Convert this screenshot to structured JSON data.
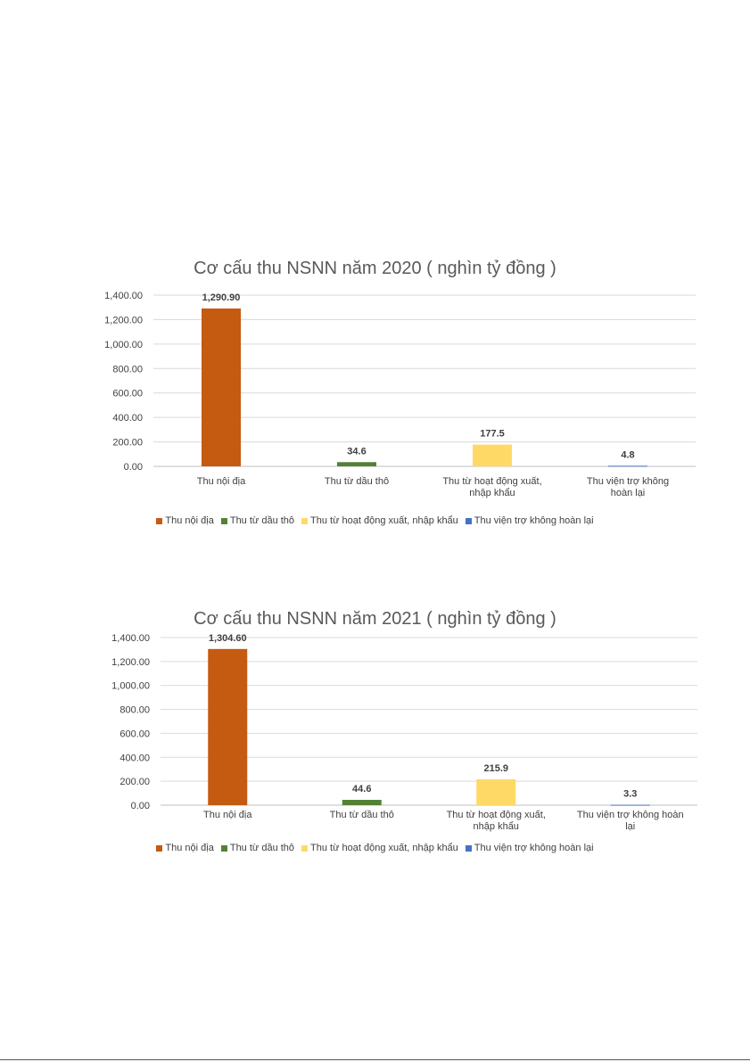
{
  "series_colors": [
    "#c55a11",
    "#548235",
    "#ffd966",
    "#4472c4"
  ],
  "chart_data": [
    {
      "type": "bar",
      "title": "Cơ cấu thu NSNN năm 2020 ( nghìn tỷ đồng )",
      "categories": [
        "Thu nội địa",
        "Thu từ dầu thô",
        "Thu từ hoạt động xuất, nhập khẩu",
        "Thu viện trợ không hoàn lại"
      ],
      "category_lines": [
        [
          "Thu nội địa"
        ],
        [
          "Thu từ dầu thô"
        ],
        [
          "Thu từ hoạt động xuất,",
          "nhập khẩu"
        ],
        [
          "Thu viện trợ không",
          "hoàn lại"
        ]
      ],
      "values": [
        1290.9,
        34.6,
        177.5,
        4.8
      ],
      "data_labels": [
        "1,290.90",
        "34.6",
        "177.5",
        "4.8"
      ],
      "yticks": [
        "0.00",
        "200.00",
        "400.00",
        "600.00",
        "800.00",
        "1,000.00",
        "1,200.00",
        "1,400.00"
      ],
      "ylim": [
        0,
        1400
      ],
      "grid": true,
      "legend": [
        "Thu nội địa",
        "Thu từ dầu thô",
        "Thu từ hoạt động xuất, nhập khẩu",
        "Thu viện trợ không hoàn lại"
      ],
      "legend_position": "bottom"
    },
    {
      "type": "bar",
      "title": "Cơ cấu thu NSNN năm 2021 ( nghìn tỷ đồng )",
      "categories": [
        "Thu nội địa",
        "Thu từ dầu thô",
        "Thu từ hoạt động xuất, nhập khẩu",
        "Thu viện trợ không hoàn lại"
      ],
      "category_lines": [
        [
          "Thu nội địa"
        ],
        [
          "Thu từ dầu thô"
        ],
        [
          "Thu từ hoạt động xuất,",
          "nhập khẩu"
        ],
        [
          "Thu viện trợ không hoàn",
          "lại"
        ]
      ],
      "values": [
        1304.6,
        44.6,
        215.9,
        3.3
      ],
      "data_labels": [
        "1,304.60",
        "44.6",
        "215.9",
        "3.3"
      ],
      "yticks": [
        "0.00",
        "200.00",
        "400.00",
        "600.00",
        "800.00",
        "1,000.00",
        "1,200.00",
        "1,400.00"
      ],
      "ylim": [
        0,
        1400
      ],
      "grid": true,
      "legend": [
        "Thu nội địa",
        "Thu từ dầu thô",
        "Thu từ hoạt động xuất, nhập khẩu",
        "Thu viện trợ không hoàn lại"
      ],
      "legend_position": "bottom"
    }
  ]
}
